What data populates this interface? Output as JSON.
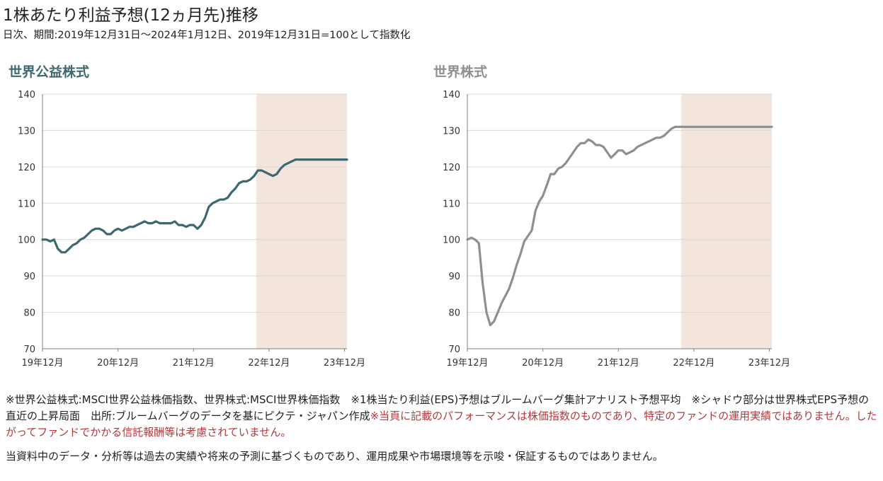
{
  "header": {
    "title": "1株あたり利益予想(12ヵ月先)推移",
    "subtitle": "日次、期間:2019年12月31日～2024年1月12日、2019年12月31日=100として指数化"
  },
  "chart_data": [
    {
      "type": "line",
      "title": "世界公益株式",
      "line_color": "#3d6872",
      "title_color": "#3d6872",
      "shade_color": "#f3e4dc",
      "ylim": [
        70,
        140
      ],
      "yticks": [
        "70",
        "80",
        "90",
        "100",
        "110",
        "120",
        "130",
        "140"
      ],
      "xlim": [
        2019.997,
        2024.03
      ],
      "xticks": [
        {
          "x": 2019.997,
          "label": "19年12月"
        },
        {
          "x": 2020.997,
          "label": "20年12月"
        },
        {
          "x": 2021.997,
          "label": "21年12月"
        },
        {
          "x": 2022.997,
          "label": "22年12月"
        },
        {
          "x": 2023.997,
          "label": "23年12月"
        }
      ],
      "shade_x": [
        2022.83,
        2024.03
      ],
      "x": [
        2019.997,
        2020.05,
        2020.1,
        2020.15,
        2020.2,
        2020.25,
        2020.3,
        2020.35,
        2020.4,
        2020.45,
        2020.5,
        2020.55,
        2020.6,
        2020.65,
        2020.7,
        2020.75,
        2020.8,
        2020.85,
        2020.9,
        2020.95,
        2020.997,
        2021.05,
        2021.1,
        2021.15,
        2021.2,
        2021.25,
        2021.3,
        2021.35,
        2021.4,
        2021.45,
        2021.5,
        2021.55,
        2021.6,
        2021.65,
        2021.7,
        2021.75,
        2021.8,
        2021.85,
        2021.9,
        2021.95,
        2021.997,
        2022.05,
        2022.1,
        2022.15,
        2022.2,
        2022.25,
        2022.3,
        2022.35,
        2022.4,
        2022.45,
        2022.5,
        2022.55,
        2022.6,
        2022.65,
        2022.7,
        2022.75,
        2022.8,
        2022.85,
        2022.9,
        2022.95,
        2022.997,
        2023.05,
        2023.1,
        2023.15,
        2023.2,
        2023.25,
        2023.3,
        2023.35,
        2023.4,
        2023.45,
        2023.5,
        2023.55,
        2023.6,
        2023.65,
        2023.7,
        2023.75,
        2023.8,
        2023.85,
        2023.9,
        2023.95,
        2023.997,
        2024.03
      ],
      "values": [
        100,
        100,
        99.5,
        100,
        97.5,
        96.5,
        96.5,
        97.5,
        98.5,
        99,
        100,
        100.5,
        101.5,
        102.5,
        103,
        103,
        102.5,
        101.5,
        101.5,
        102.5,
        103,
        102.5,
        103,
        103.5,
        103.5,
        104,
        104.5,
        105,
        104.5,
        104.5,
        105,
        104.5,
        104.5,
        104.5,
        104.5,
        105,
        104,
        104,
        103.5,
        104,
        104,
        103,
        104,
        106,
        109,
        110,
        110.5,
        111,
        111,
        111.5,
        113,
        114,
        115.5,
        116,
        116,
        116.5,
        117.5,
        119,
        119,
        118.5,
        118,
        117.5,
        118,
        119.5,
        120.5,
        121,
        121.5,
        122,
        122,
        122,
        122,
        122,
        122,
        122,
        122,
        122,
        122,
        122,
        122,
        122,
        122,
        122
      ]
    },
    {
      "type": "line",
      "title": "世界株式",
      "line_color": "#8f8f8f",
      "title_color": "#8f8f8f",
      "shade_color": "#f3e4dc",
      "ylim": [
        70,
        140
      ],
      "yticks": [
        "70",
        "80",
        "90",
        "100",
        "110",
        "120",
        "130",
        "140"
      ],
      "xlim": [
        2019.997,
        2024.03
      ],
      "xticks": [
        {
          "x": 2019.997,
          "label": "19年12月"
        },
        {
          "x": 2020.997,
          "label": "20年12月"
        },
        {
          "x": 2021.997,
          "label": "21年12月"
        },
        {
          "x": 2022.997,
          "label": "22年12月"
        },
        {
          "x": 2023.997,
          "label": "23年12月"
        }
      ],
      "shade_x": [
        2022.83,
        2024.03
      ],
      "x": [
        2019.997,
        2020.05,
        2020.1,
        2020.15,
        2020.2,
        2020.25,
        2020.3,
        2020.35,
        2020.4,
        2020.45,
        2020.5,
        2020.55,
        2020.6,
        2020.65,
        2020.7,
        2020.75,
        2020.8,
        2020.85,
        2020.9,
        2020.95,
        2020.997,
        2021.05,
        2021.1,
        2021.15,
        2021.2,
        2021.25,
        2021.3,
        2021.35,
        2021.4,
        2021.45,
        2021.5,
        2021.55,
        2021.6,
        2021.65,
        2021.7,
        2021.75,
        2021.8,
        2021.85,
        2021.9,
        2021.95,
        2021.997,
        2022.05,
        2022.1,
        2022.15,
        2022.2,
        2022.25,
        2022.3,
        2022.35,
        2022.4,
        2022.45,
        2022.5,
        2022.55,
        2022.6,
        2022.65,
        2022.7,
        2022.75,
        2022.8,
        2022.85,
        2022.9,
        2022.95,
        2022.997,
        2023.05,
        2023.1,
        2023.15,
        2023.2,
        2023.25,
        2023.3,
        2023.35,
        2023.4,
        2023.45,
        2023.5,
        2023.55,
        2023.6,
        2023.65,
        2023.7,
        2023.75,
        2023.8,
        2023.85,
        2023.9,
        2023.95,
        2023.997,
        2024.03
      ],
      "values": [
        100,
        100.5,
        100,
        99,
        88,
        80,
        76.5,
        77.5,
        80,
        82.5,
        84.5,
        86.5,
        89.5,
        93,
        96,
        99.5,
        101,
        102.5,
        108,
        110.5,
        112,
        115,
        118,
        118,
        119.5,
        120,
        121,
        122.5,
        124,
        125.5,
        126.5,
        126.5,
        127.5,
        127,
        126,
        126,
        125.5,
        124,
        122.5,
        123.5,
        124.5,
        124.5,
        123.5,
        124,
        124.5,
        125.5,
        126,
        126.5,
        127,
        127.5,
        128,
        128,
        128.5,
        129.5,
        130.5,
        131,
        131,
        131,
        131,
        131,
        131,
        131,
        131,
        131,
        131,
        131,
        131,
        131,
        131,
        131,
        131,
        131,
        131,
        131,
        131,
        131,
        131,
        131,
        131,
        131,
        131,
        131
      ]
    }
  ],
  "notes": {
    "part1": "※世界公益株式:MSCI世界公益株価指数、世界株式:MSCI世界株価指数　※1株当たり利益(EPS)予想はブルームバーグ集計アナリスト予想平均　※シャドウ部分は世界株式EPS予想の直近の上昇局面　出所:ブルームバーグのデータを基にピクテ・ジャパン作成",
    "part2_red": "※当頁に記載のパフォーマンスは株価指数のものであり、特定のファンドの運用実績ではありません。したがってファンドでかかる信託報酬等は考慮されていません。"
  },
  "disclaimer": "当資料中のデータ・分析等は過去の実績や将来の予測に基づくものであり、運用成果や市場環境等を示唆・保証するものではありません。"
}
